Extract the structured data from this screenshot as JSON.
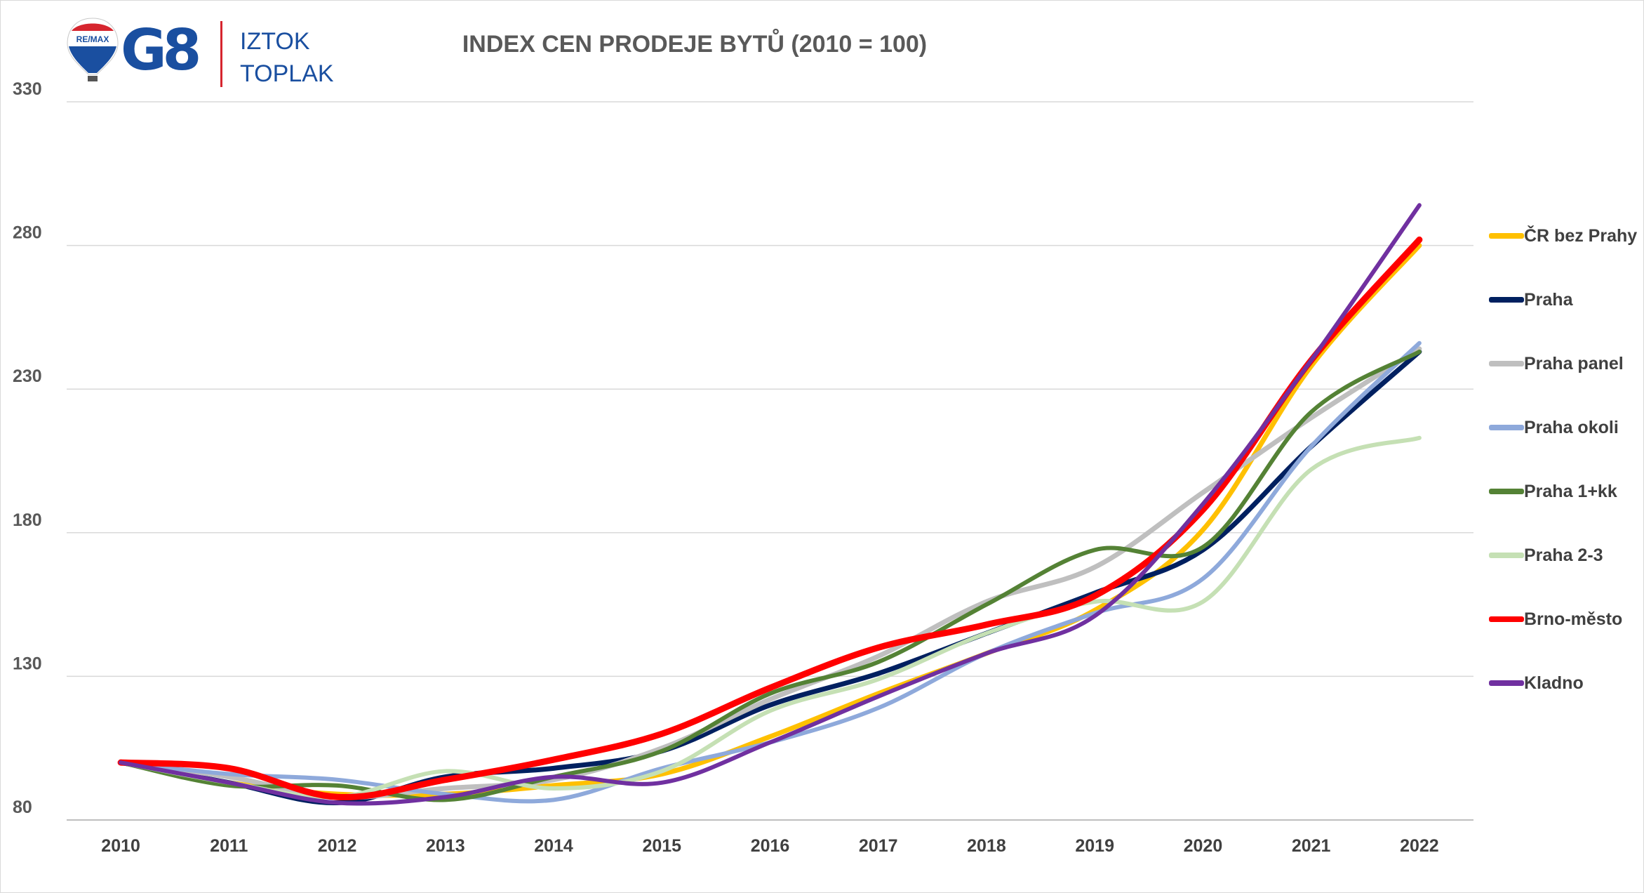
{
  "branding": {
    "remax_mark": "RE/MAX",
    "office": "G8",
    "agent_line1": "IZTOK",
    "agent_line2": "TOPLAK"
  },
  "chart_data": {
    "type": "line",
    "title": "INDEX CEN PRODEJE BYTŮ (2010 = 100)",
    "xlabel": "",
    "ylabel": "",
    "x": [
      "2010",
      "2011",
      "2012",
      "2013",
      "2014",
      "2015",
      "2016",
      "2017",
      "2018",
      "2019",
      "2020",
      "2021",
      "2022"
    ],
    "ylim": [
      80,
      330
    ],
    "yticks": [
      80,
      130,
      180,
      230,
      280,
      330
    ],
    "grid": "horizontal",
    "legend_position": "right",
    "series": [
      {
        "name": "ČR bez Prahy",
        "color": "#FFC000",
        "width": 7,
        "values": [
          100,
          93,
          89,
          89,
          92,
          96,
          109,
          124,
          138,
          153,
          181,
          238,
          280
        ]
      },
      {
        "name": "Praha",
        "color": "#002060",
        "width": 7,
        "values": [
          100,
          93,
          86,
          95,
          98,
          104,
          120,
          131,
          145,
          159,
          174,
          210,
          243
        ]
      },
      {
        "name": "Praha panel",
        "color": "#BFBFBF",
        "width": 7,
        "values": [
          100,
          95,
          88,
          91,
          94,
          105,
          122,
          137,
          156,
          168,
          194,
          220,
          244
        ]
      },
      {
        "name": "Praha okoli",
        "color": "#8EA9DB",
        "width": 6,
        "values": [
          100,
          96,
          94,
          89,
          87,
          98,
          107,
          119,
          138,
          152,
          164,
          210,
          246
        ]
      },
      {
        "name": "Praha 1+kk",
        "color": "#548235",
        "width": 6,
        "values": [
          100,
          92,
          92,
          87,
          95,
          104,
          124,
          135,
          155,
          174,
          175,
          222,
          243
        ]
      },
      {
        "name": "Praha 2-3",
        "color": "#C5E0B4",
        "width": 6,
        "values": [
          100,
          93,
          88,
          97,
          91,
          97,
          118,
          129,
          145,
          156,
          156,
          202,
          213
        ]
      },
      {
        "name": "Brno-město",
        "color": "#FF0000",
        "width": 9,
        "values": [
          100,
          98,
          88,
          94,
          101,
          110,
          126,
          140,
          148,
          158,
          188,
          240,
          282
        ]
      },
      {
        "name": "Kladno",
        "color": "#7030A0",
        "width": 6,
        "values": [
          100,
          93,
          86,
          88,
          95,
          93,
          107,
          123,
          138,
          151,
          190,
          240,
          294
        ]
      }
    ]
  }
}
